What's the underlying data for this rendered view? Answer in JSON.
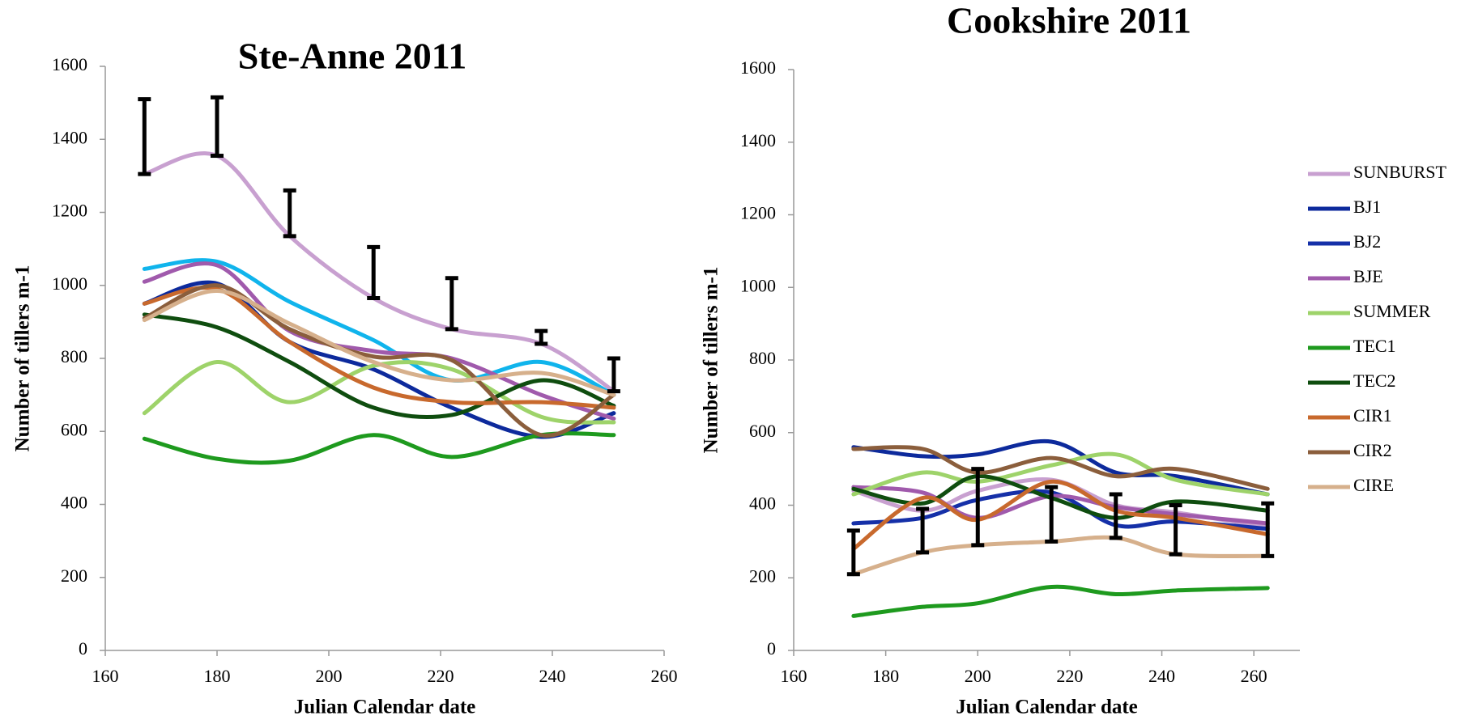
{
  "chart_data": [
    {
      "type": "line",
      "title": "Ste-Anne 2011",
      "xlabel": "Julian Calendar date",
      "ylabel": "Number of tillers m-1",
      "xlim": [
        160,
        260
      ],
      "ylim": [
        0,
        1600
      ],
      "xticks": [
        160,
        180,
        200,
        220,
        240,
        260
      ],
      "yticks": [
        0,
        200,
        400,
        600,
        800,
        1000,
        1200,
        1400,
        1600
      ],
      "x": [
        167,
        180,
        193,
        208,
        222,
        238,
        251
      ],
      "series": [
        {
          "color": "#c8a0d0",
          "values": [
            1305,
            1355,
            1135,
            965,
            880,
            840,
            710
          ],
          "errors": [
            205,
            160,
            125,
            140,
            140,
            35,
            90
          ]
        },
        {
          "color": "#10b4ec",
          "values": [
            1045,
            1065,
            955,
            850,
            740,
            790,
            700
          ]
        },
        {
          "color": "#0d2a9c",
          "values": [
            950,
            1005,
            845,
            770,
            665,
            585,
            650
          ]
        },
        {
          "color": "#a05aac",
          "values": [
            1010,
            1055,
            875,
            820,
            800,
            700,
            635
          ]
        },
        {
          "color": "#9ed36a",
          "values": [
            650,
            790,
            680,
            780,
            770,
            640,
            625
          ]
        },
        {
          "color": "#1e9a1e",
          "values": [
            580,
            525,
            520,
            590,
            530,
            590,
            590
          ]
        },
        {
          "color": "#0f4d0f",
          "values": [
            920,
            885,
            790,
            665,
            645,
            740,
            670
          ]
        },
        {
          "color": "#c8692d",
          "values": [
            950,
            990,
            845,
            720,
            680,
            680,
            665
          ]
        },
        {
          "color": "#8b5e3c",
          "values": [
            910,
            1000,
            880,
            805,
            795,
            590,
            700
          ]
        },
        {
          "color": "#d6b08c",
          "values": [
            905,
            985,
            895,
            790,
            740,
            760,
            700
          ]
        }
      ]
    },
    {
      "type": "line",
      "title": "Cookshire 2011",
      "xlabel": "Julian Calendar date",
      "ylabel": "Number of tillers m-1",
      "xlim": [
        160,
        270
      ],
      "ylim": [
        0,
        1600
      ],
      "xticks": [
        160,
        180,
        200,
        220,
        240,
        260
      ],
      "yticks": [
        0,
        200,
        400,
        600,
        800,
        1000,
        1200,
        1400,
        1600
      ],
      "x": [
        173,
        188,
        200,
        216,
        230,
        243,
        263
      ],
      "legend": "right",
      "series": [
        {
          "name": "SUNBURST",
          "color": "#c8a0d0",
          "values": [
            440,
            385,
            440,
            470,
            400,
            380,
            340
          ]
        },
        {
          "name": "BJ1",
          "color": "#0d2a9c",
          "values": [
            560,
            535,
            540,
            575,
            490,
            480,
            430
          ]
        },
        {
          "name": "BJ2",
          "color": "#1530a8",
          "values": [
            350,
            365,
            415,
            435,
            345,
            355,
            335
          ]
        },
        {
          "name": "BJE",
          "color": "#a05aac",
          "values": [
            450,
            435,
            365,
            425,
            395,
            375,
            350
          ]
        },
        {
          "name": "SUMMER",
          "color": "#9ed36a",
          "values": [
            430,
            490,
            465,
            510,
            540,
            470,
            430
          ]
        },
        {
          "name": "TEC1",
          "color": "#1e9a1e",
          "values": [
            95,
            120,
            130,
            175,
            155,
            165,
            172
          ]
        },
        {
          "name": "TEC2",
          "color": "#0f4d0f",
          "values": [
            445,
            405,
            480,
            420,
            365,
            410,
            385
          ]
        },
        {
          "name": "CIR1",
          "color": "#c8692d",
          "values": [
            280,
            420,
            360,
            465,
            385,
            365,
            320
          ]
        },
        {
          "name": "CIR2",
          "color": "#8b5e3c",
          "values": [
            555,
            555,
            490,
            530,
            480,
            500,
            445
          ]
        },
        {
          "name": "CIRE",
          "color": "#d6b08c",
          "values": [
            210,
            270,
            290,
            300,
            310,
            265,
            260
          ],
          "errors": [
            120,
            120,
            210,
            150,
            120,
            135,
            145
          ]
        }
      ]
    }
  ]
}
